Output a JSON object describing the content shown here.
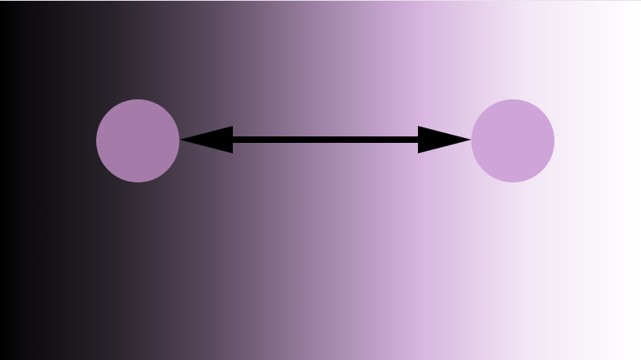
{
  "diagram": {
    "nodes": [
      {
        "id": "left",
        "color": "#a47ba9"
      },
      {
        "id": "right",
        "color": "#cea4d9"
      }
    ],
    "connector": {
      "type": "double-headed-arrow",
      "from": "left",
      "to": "right",
      "color": "#000000"
    }
  }
}
